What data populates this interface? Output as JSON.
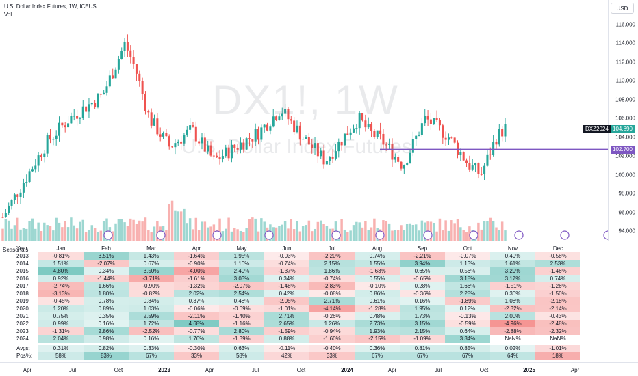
{
  "legend": {
    "title": "U.S. Dollar Index Futures, 1W, ICEUS",
    "vol": "Vol"
  },
  "watermark": {
    "main": "DX1!, 1W",
    "sub": "U.S. Dollar Index Futures"
  },
  "price_scale": {
    "currency_button": "USD",
    "labels": [
      "116.000",
      "114.000",
      "112.000",
      "110.000",
      "108.000",
      "106.000",
      "104.000",
      "102.000",
      "100.000",
      "98.000",
      "96.000",
      "94.000"
    ],
    "contract_tag": "DXZ2024",
    "last_price": "104.890",
    "line_price": "102.700",
    "colors": {
      "up": "#26a69a",
      "down": "#ef5350",
      "line": "#7e57c2",
      "tag_dark": "#131722"
    }
  },
  "chart_data": {
    "type": "candlestick",
    "horizontal_line": 102.7,
    "last_price": 104.89,
    "ylim": [
      93,
      117
    ]
  },
  "seasonals": {
    "label": "Seasonals",
    "header": [
      "Year",
      "Jan",
      "Feb",
      "Mar",
      "Apr",
      "May",
      "Jun",
      "Jul",
      "Aug",
      "Sep",
      "Oct",
      "Nov",
      "Dec"
    ],
    "rows": [
      [
        "2013",
        "-0.81%",
        "3.51%",
        "1.43%",
        "-1.64%",
        "1.95%",
        "-0.03%",
        "-2.20%",
        "0.74%",
        "-2.21%",
        "-0.07%",
        "0.49%",
        "-0.58%"
      ],
      [
        "2014",
        "1.51%",
        "-2.07%",
        "0.67%",
        "-0.90%",
        "1.10%",
        "-0.74%",
        "2.15%",
        "1.55%",
        "3.94%",
        "1.13%",
        "1.61%",
        "2.53%"
      ],
      [
        "2015",
        "4.80%",
        "0.34%",
        "3.50%",
        "-4.00%",
        "2.40%",
        "-1.37%",
        "1.86%",
        "-1.63%",
        "0.65%",
        "0.56%",
        "3.29%",
        "-1.46%"
      ],
      [
        "2016",
        "0.92%",
        "-1.44%",
        "-3.71%",
        "-1.61%",
        "3.03%",
        "0.34%",
        "-0.74%",
        "0.55%",
        "-0.65%",
        "3.18%",
        "3.17%",
        "0.74%"
      ],
      [
        "2017",
        "-2.74%",
        "1.66%",
        "-0.90%",
        "-1.32%",
        "-2.07%",
        "-1.48%",
        "-2.83%",
        "-0.10%",
        "0.28%",
        "1.66%",
        "-1.51%",
        "-1.26%"
      ],
      [
        "2018",
        "-3.13%",
        "1.80%",
        "-0.82%",
        "2.02%",
        "2.54%",
        "0.42%",
        "-0.08%",
        "0.86%",
        "-0.36%",
        "2.28%",
        "0.30%",
        "-1.50%"
      ],
      [
        "2019",
        "-0.45%",
        "0.78%",
        "0.84%",
        "0.37%",
        "0.48%",
        "-2.05%",
        "2.71%",
        "0.61%",
        "0.16%",
        "-1.89%",
        "1.08%",
        "-2.18%"
      ],
      [
        "2020",
        "1.20%",
        "0.89%",
        "1.03%",
        "-0.06%",
        "-0.69%",
        "-1.01%",
        "-4.14%",
        "-1.28%",
        "1.95%",
        "0.12%",
        "-2.32%",
        "-2.14%"
      ],
      [
        "2021",
        "0.75%",
        "0.35%",
        "2.59%",
        "-2.11%",
        "-1.40%",
        "2.71%",
        "-0.26%",
        "0.48%",
        "1.73%",
        "-0.13%",
        "2.00%",
        "-0.43%"
      ],
      [
        "2022",
        "0.99%",
        "0.16%",
        "1.72%",
        "4.68%",
        "-1.16%",
        "2.65%",
        "1.26%",
        "2.73%",
        "3.15%",
        "-0.59%",
        "-4.96%",
        "-2.48%"
      ],
      [
        "2023",
        "-1.31%",
        "2.86%",
        "-2.52%",
        "-0.77%",
        "2.80%",
        "-1.59%",
        "-0.94%",
        "1.93%",
        "2.15%",
        "0.64%",
        "-2.88%",
        "-2.32%"
      ],
      [
        "2024",
        "2.04%",
        "0.98%",
        "0.16%",
        "1.76%",
        "-1.39%",
        "0.88%",
        "-1.60%",
        "-2.15%",
        "-1.09%",
        "3.34%",
        "NaN%",
        "NaN%"
      ]
    ],
    "avgs": [
      "Avgs:",
      "0.31%",
      "0.82%",
      "0.33%",
      "-0.30%",
      "0.63%",
      "-0.11%",
      "-0.40%",
      "0.36%",
      "0.81%",
      "0.85%",
      "0.02%",
      "-1.01%"
    ],
    "pos": [
      "Pos%:",
      "58%",
      "83%",
      "67%",
      "33%",
      "58%",
      "42%",
      "33%",
      "67%",
      "67%",
      "67%",
      "64%",
      "18%"
    ]
  },
  "time_axis": [
    {
      "label": "Apr",
      "bold": false
    },
    {
      "label": "Jul",
      "bold": false
    },
    {
      "label": "Oct",
      "bold": false
    },
    {
      "label": "2023",
      "bold": true
    },
    {
      "label": "Apr",
      "bold": false
    },
    {
      "label": "Jul",
      "bold": false
    },
    {
      "label": "Oct",
      "bold": false
    },
    {
      "label": "2024",
      "bold": true
    },
    {
      "label": "Apr",
      "bold": false
    },
    {
      "label": "Jul",
      "bold": false
    },
    {
      "label": "Oct",
      "bold": false
    },
    {
      "label": "2025",
      "bold": true
    },
    {
      "label": "Apr",
      "bold": false
    }
  ]
}
